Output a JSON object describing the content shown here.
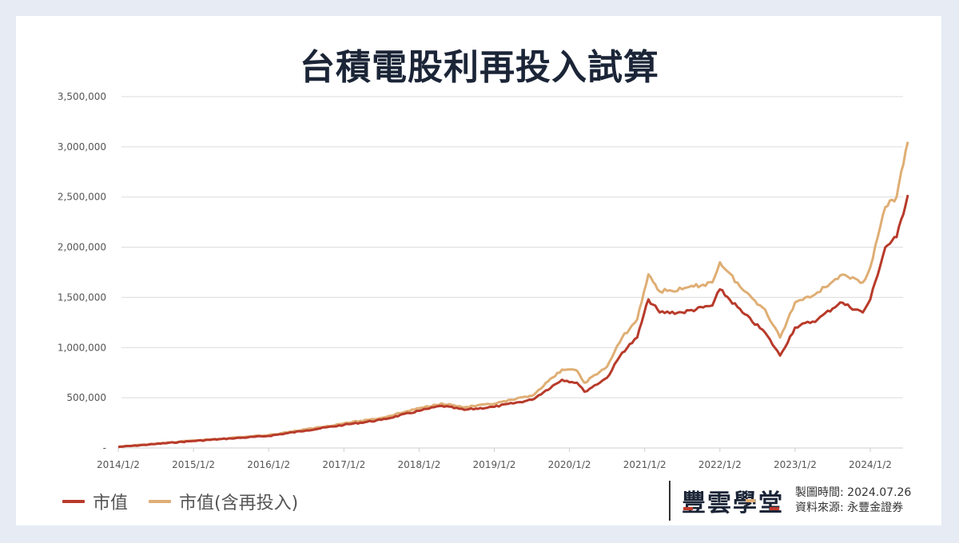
{
  "title": "台積電股利再投入試算",
  "legend": [
    {
      "label": "市值",
      "color": "#b83a2a"
    },
    {
      "label": "市值(含再投入)",
      "color": "#dfae74"
    }
  ],
  "brand": {
    "name": "豐雲學堂",
    "made_label": "製圖時間:",
    "made_value": "2024.07.26",
    "source_label": "資料來源:",
    "source_value": "永豐金證券"
  },
  "chart_data": {
    "type": "line",
    "title": "台積電股利再投入試算",
    "xlabel": "",
    "ylabel": "",
    "ylim": [
      0,
      3500000
    ],
    "grid": true,
    "legend_position": "bottom-left",
    "y_ticks": [
      "-",
      "500,000",
      "1,000,000",
      "1,500,000",
      "2,000,000",
      "2,500,000",
      "3,000,000",
      "3,500,000"
    ],
    "x_ticks": [
      "2014/1/2",
      "2015/1/2",
      "2016/1/2",
      "2017/1/2",
      "2018/1/2",
      "2019/1/2",
      "2020/1/2",
      "2021/1/2",
      "2022/1/2",
      "2023/1/2",
      "2024/1/2"
    ],
    "x": [
      2014.0,
      2014.5,
      2015.0,
      2015.5,
      2016.0,
      2016.5,
      2017.0,
      2017.5,
      2018.0,
      2018.3,
      2018.6,
      2019.0,
      2019.5,
      2019.9,
      2020.1,
      2020.2,
      2020.5,
      2020.7,
      2020.9,
      2021.05,
      2021.2,
      2021.5,
      2021.9,
      2022.0,
      2022.3,
      2022.6,
      2022.8,
      2023.0,
      2023.3,
      2023.6,
      2023.9,
      2024.0,
      2024.2,
      2024.35,
      2024.5
    ],
    "series": [
      {
        "name": "市值",
        "color": "#b83a2a",
        "values": [
          10000,
          40000,
          70000,
          95000,
          120000,
          175000,
          230000,
          280000,
          370000,
          420000,
          380000,
          410000,
          480000,
          680000,
          650000,
          560000,
          700000,
          950000,
          1100000,
          1480000,
          1350000,
          1350000,
          1420000,
          1580000,
          1350000,
          1150000,
          920000,
          1200000,
          1280000,
          1450000,
          1350000,
          1480000,
          2000000,
          2100000,
          2520000
        ]
      },
      {
        "name": "市值(含再投入)",
        "color": "#dfae74",
        "values": [
          10000,
          42000,
          73000,
          100000,
          128000,
          185000,
          245000,
          300000,
          395000,
          445000,
          405000,
          440000,
          520000,
          780000,
          770000,
          650000,
          810000,
          1100000,
          1280000,
          1730000,
          1560000,
          1580000,
          1650000,
          1850000,
          1580000,
          1380000,
          1100000,
          1450000,
          1550000,
          1720000,
          1650000,
          1800000,
          2400000,
          2500000,
          3050000
        ]
      }
    ]
  }
}
